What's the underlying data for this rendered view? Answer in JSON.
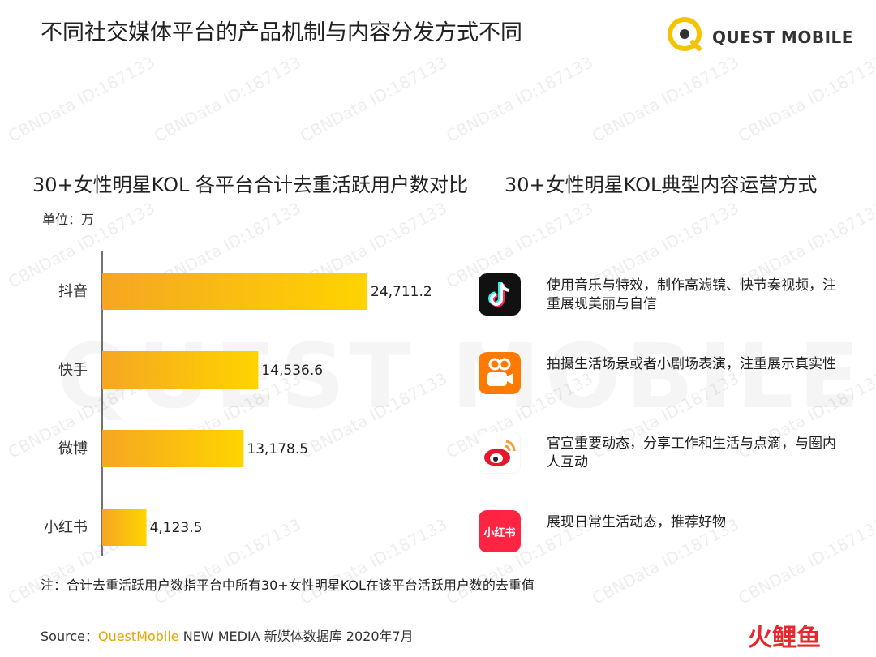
{
  "title": "不同社交媒体平台的产品机制与内容分发方式不同",
  "brand": {
    "logo_text": "QUEST MOBILE",
    "accent": "#F5C400"
  },
  "left_heading": "30+女性明星KOL 各平台合计去重活跃用户数对比",
  "right_heading": "30+女性明星KOL典型内容运营方式",
  "unit_label": "单位：万",
  "chart_data": {
    "type": "bar",
    "orientation": "horizontal",
    "categories": [
      "抖音",
      "快手",
      "微博",
      "小红书"
    ],
    "values": [
      24711.2,
      14536.6,
      13178.5,
      4123.5
    ],
    "value_labels": [
      "24,711.2",
      "14,536.6",
      "13,178.5",
      "4,123.5"
    ],
    "unit": "万",
    "xlim": [
      0,
      26000
    ],
    "grid": false,
    "bar_color_start": "#F5A623",
    "bar_color_end": "#FFD400"
  },
  "platforms": [
    {
      "name": "douyin",
      "icon": "douyin-icon",
      "color": "#111111",
      "desc": "使用音乐与特效，制作高滤镜、快节奏视频，注重展现美丽与自信"
    },
    {
      "name": "kuaishou",
      "icon": "kuaishou-icon",
      "color": "#FF7A00",
      "desc": "拍摄生活场景或者小剧场表演，注重展示真实性"
    },
    {
      "name": "weibo",
      "icon": "weibo-icon",
      "color": "#FFFFFF",
      "desc": "官宣重要动态，分享工作和生活与点滴，与圈内人互动"
    },
    {
      "name": "xiaohongshu",
      "icon": "xiaohongshu-icon",
      "color": "#FF2442",
      "icon_text": "小红书",
      "desc": "展现日常生活动态，推荐好物"
    }
  ],
  "footnote": "注：合计去重活跃用户数指平台中所有30+女性明星KOL在该平台活跃用户数的去重值",
  "source": {
    "prefix": "Source：",
    "brand": "QuestMobile",
    "rest": " NEW MEDIA 新媒体数据库 2020年7月"
  },
  "watermark": "CBNData ID:187133",
  "big_watermark": "QUEST MOBILE",
  "corner_logo": "火鲤鱼"
}
